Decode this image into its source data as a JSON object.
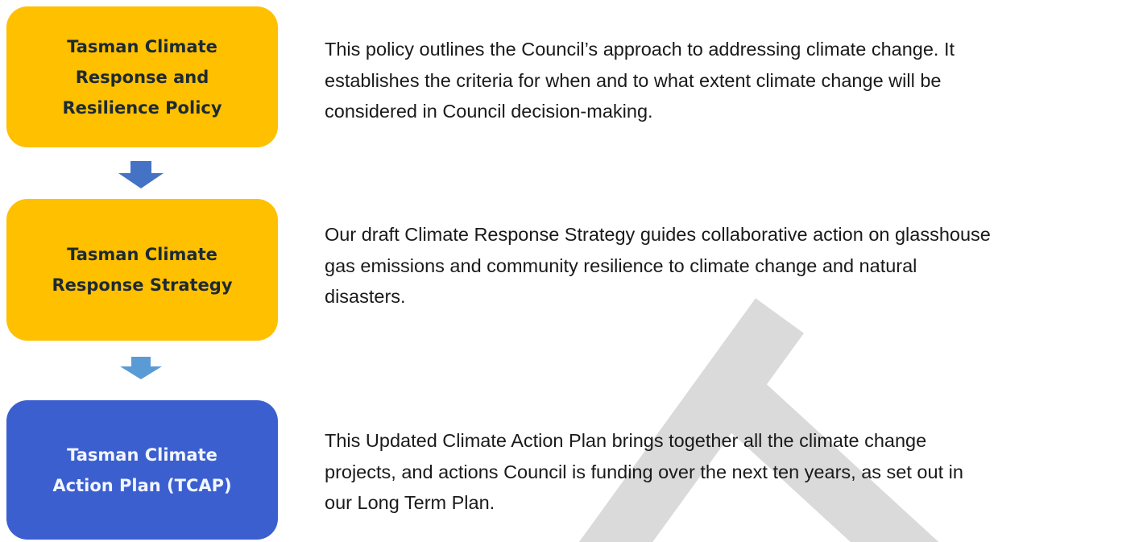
{
  "nodes": [
    {
      "label_lines": [
        "Tasman Climate",
        "Response and",
        "Resilience Policy"
      ],
      "description_lines": [
        "This policy outlines the Council’s approach to addressing climate change. It",
        "establishes the criteria for when and to what extent climate change will be",
        "considered in Council decision-making."
      ]
    },
    {
      "label_lines": [
        "Tasman Climate",
        "Response Strategy"
      ],
      "description_lines": [
        "Our draft Climate Response Strategy guides collaborative action on glasshouse",
        "gas emissions and community resilience to climate change and natural",
        "disasters."
      ]
    },
    {
      "label_lines": [
        "Tasman Climate",
        "Action Plan (TCAP)"
      ],
      "description_lines": [
        "This Updated Climate Action Plan brings together all the climate change",
        "projects, and actions Council is funding over the next ten years, as set out in",
        "our Long Term Plan."
      ]
    }
  ]
}
